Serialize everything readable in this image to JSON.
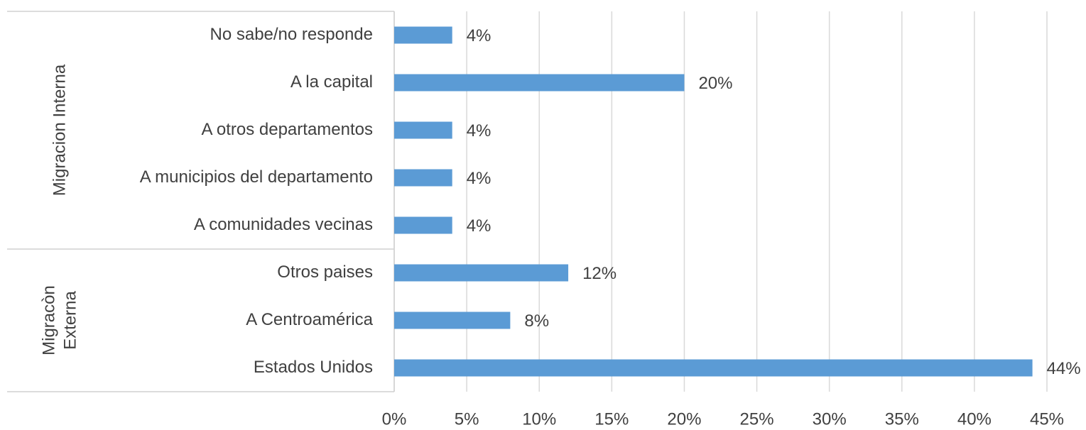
{
  "chart_data": {
    "type": "bar",
    "orientation": "horizontal",
    "categories": [
      "No sabe/no responde",
      "A la capital",
      "A otros departamentos",
      "A municipios del departamento",
      "A comunidades vecinas",
      "Otros paises",
      "A Centroamérica",
      "Estados Unidos"
    ],
    "values": [
      4,
      20,
      4,
      4,
      4,
      12,
      8,
      44
    ],
    "value_labels": [
      "4%",
      "20%",
      "4%",
      "4%",
      "4%",
      "12%",
      "8%",
      "44%"
    ],
    "color": "#5b9bd5",
    "groups": [
      {
        "lines": [
          "Migracion Interna"
        ],
        "size": 5
      },
      {
        "lines": [
          "Migracòn",
          "Externa"
        ],
        "size": 3
      }
    ],
    "xlim": [
      0,
      45
    ],
    "xticks": [
      {
        "value": 0,
        "label": "0%"
      },
      {
        "value": 5,
        "label": "5%"
      },
      {
        "value": 10,
        "label": "10%"
      },
      {
        "value": 15,
        "label": "15%"
      },
      {
        "value": 20,
        "label": "20%"
      },
      {
        "value": 25,
        "label": "25%"
      },
      {
        "value": 30,
        "label": "30%"
      },
      {
        "value": 35,
        "label": "35%"
      },
      {
        "value": 40,
        "label": "40%"
      },
      {
        "value": 45,
        "label": "45%"
      }
    ],
    "grid": true
  }
}
